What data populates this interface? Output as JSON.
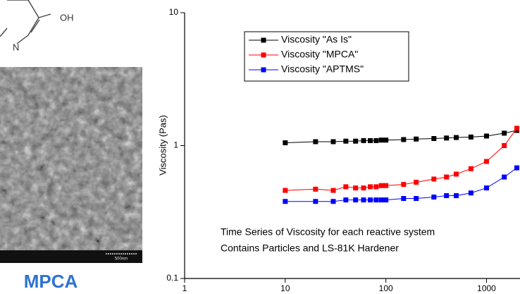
{
  "left_panel": {
    "structure_labels": [
      "OH",
      "N"
    ],
    "scale_bar": "500nm",
    "caption": "MPCA"
  },
  "chart_data": {
    "type": "line",
    "ylabel": "Viscosity (Pas)",
    "annotations": [
      "Time Series of Viscosity for each reactive system",
      "Contains Particles and LS-81K Hardener"
    ],
    "xscale": "log",
    "yscale": "log",
    "xlim": [
      1,
      2150
    ],
    "ylim": [
      0.1,
      10
    ],
    "xticks": [
      1,
      10,
      100,
      1000
    ],
    "yticks": [
      0.1,
      1,
      10
    ],
    "legend": "upper center",
    "x": [
      10,
      20,
      30,
      40,
      50,
      60,
      70,
      80,
      90,
      100,
      150,
      200,
      300,
      400,
      500,
      700,
      1000,
      1500,
      2000
    ],
    "series": [
      {
        "name": "Viscosity \"As Is\"",
        "color": "#000000",
        "values": [
          1.05,
          1.07,
          1.07,
          1.08,
          1.08,
          1.09,
          1.09,
          1.09,
          1.1,
          1.1,
          1.11,
          1.12,
          1.13,
          1.14,
          1.15,
          1.16,
          1.18,
          1.24,
          1.3
        ]
      },
      {
        "name": "Viscosity \"MPCA\"",
        "color": "#ff0000",
        "values": [
          0.46,
          0.47,
          0.46,
          0.49,
          0.48,
          0.48,
          0.49,
          0.49,
          0.5,
          0.5,
          0.51,
          0.53,
          0.56,
          0.58,
          0.61,
          0.67,
          0.76,
          1.0,
          1.35
        ]
      },
      {
        "name": "Viscosity \"APTMS\"",
        "color": "#0000ff",
        "values": [
          0.38,
          0.38,
          0.38,
          0.39,
          0.39,
          0.39,
          0.39,
          0.39,
          0.39,
          0.39,
          0.4,
          0.4,
          0.41,
          0.42,
          0.42,
          0.44,
          0.48,
          0.58,
          0.68
        ]
      }
    ]
  }
}
